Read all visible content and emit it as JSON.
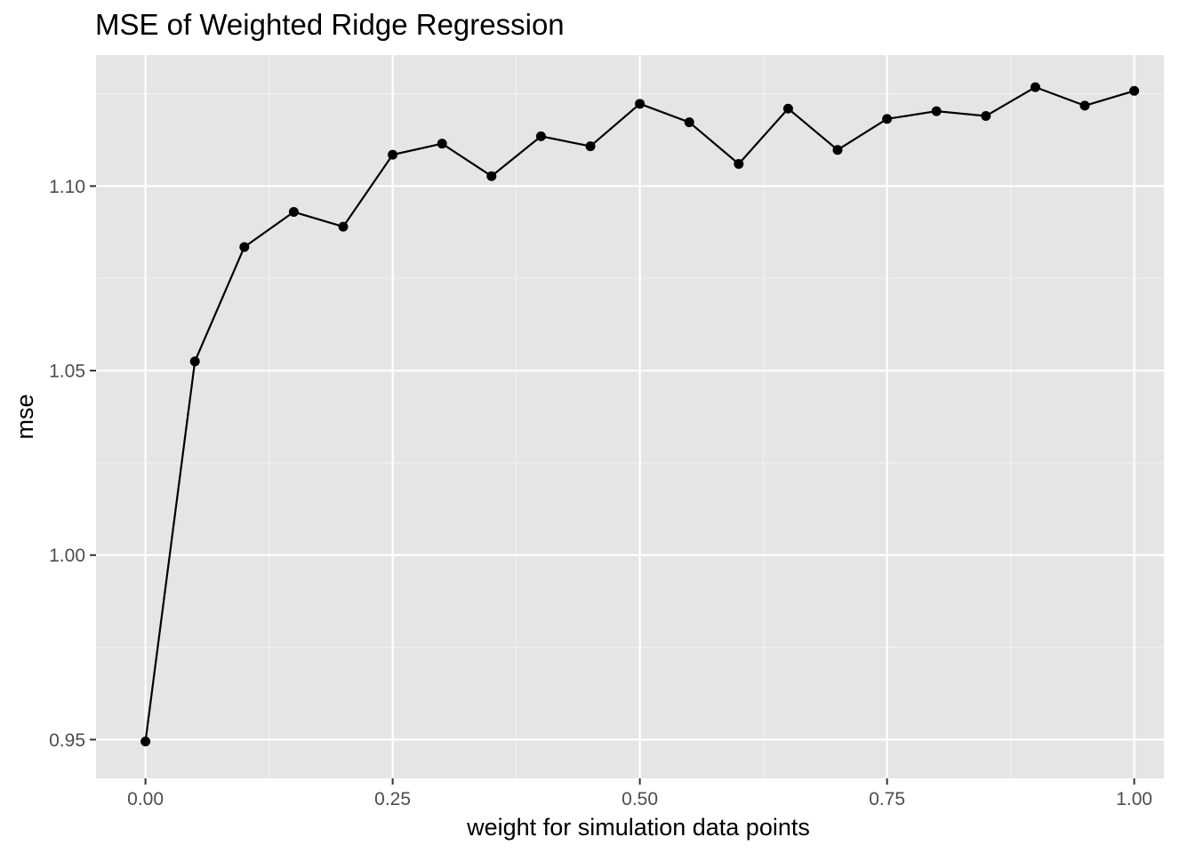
{
  "chart_data": {
    "type": "line",
    "title": "MSE of Weighted Ridge Regression",
    "xlabel": "weight for simulation data points",
    "ylabel": "mse",
    "x": [
      0.0,
      0.05,
      0.1,
      0.15,
      0.2,
      0.25,
      0.3,
      0.35,
      0.4,
      0.45,
      0.5,
      0.55,
      0.6,
      0.65,
      0.7,
      0.75,
      0.8,
      0.85,
      0.9,
      0.95,
      1.0
    ],
    "series": [
      {
        "values": [
          0.9495,
          1.0525,
          1.0835,
          1.093,
          1.089,
          1.1085,
          1.1115,
          1.1027,
          1.1135,
          1.1108,
          1.1223,
          1.1173,
          1.106,
          1.121,
          1.1098,
          1.1182,
          1.1203,
          1.119,
          1.1268,
          1.1218,
          1.1258
        ]
      }
    ],
    "xlim": [
      -0.05,
      1.03
    ],
    "ylim": [
      0.9395,
      1.1355
    ],
    "x_ticks": [
      0.0,
      0.25,
      0.5,
      0.75,
      1.0
    ],
    "x_tick_labels": [
      "0.00",
      "0.25",
      "0.50",
      "0.75",
      "1.00"
    ],
    "y_ticks": [
      0.95,
      1.0,
      1.05,
      1.1
    ],
    "y_tick_labels": [
      "0.95",
      "1.00",
      "1.05",
      "1.10"
    ],
    "grid": true,
    "colors": {
      "panel_background": "#E5E5E5",
      "grid_major": "#FFFFFF",
      "grid_minor": "#F2F2F2",
      "line": "#000000",
      "point": "#000000",
      "tick_text": "#4D4D4D",
      "tick_mark": "#333333"
    }
  }
}
